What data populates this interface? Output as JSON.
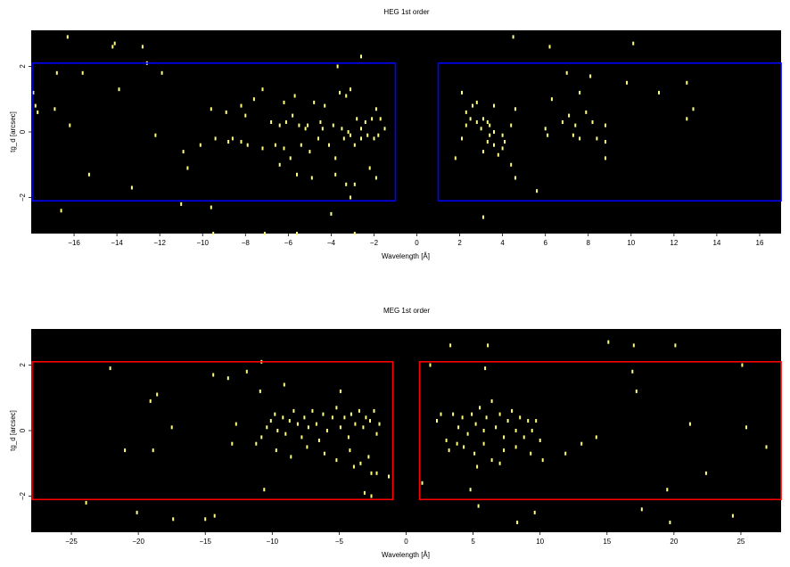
{
  "chart_data": [
    {
      "type": "heatmap",
      "title": "HEG 1st order",
      "xlabel": "Wavelength [Å]",
      "ylabel": "tg_d [arcsec]",
      "xlim": [
        -18,
        17
      ],
      "ylim": [
        -3.1,
        3.1
      ],
      "xticks": [
        -16,
        -14,
        -12,
        -10,
        -8,
        -6,
        -4,
        -2,
        0,
        2,
        4,
        6,
        8,
        10,
        12,
        14,
        16
      ],
      "xtick_labels": [
        "−16",
        "−14",
        "−12",
        "−10",
        "−8",
        "−6",
        "−4",
        "−2",
        "0",
        "2",
        "4",
        "6",
        "8",
        "10",
        "12",
        "14",
        "16"
      ],
      "yticks": [
        -2,
        0,
        2
      ],
      "ytick_labels": [
        "−2",
        "0",
        "2"
      ],
      "background_color": "#000000",
      "event_color": "#ffff80",
      "region_color": "#0000ff",
      "regions": [
        {
          "x0": -18,
          "x1": -1,
          "y0": -2.1,
          "y1": 2.1
        },
        {
          "x0": 1,
          "x1": 17,
          "y0": -2.1,
          "y1": 2.1
        }
      ],
      "events": [
        [
          -16.3,
          2.9
        ],
        [
          -14.1,
          2.7
        ],
        [
          -14.2,
          2.6
        ],
        [
          -12.8,
          2.6
        ],
        [
          -12.6,
          2.1
        ],
        [
          -3.7,
          2.0
        ],
        [
          -2.6,
          2.3
        ],
        [
          4.5,
          2.9
        ],
        [
          6.2,
          2.6
        ],
        [
          10.1,
          2.7
        ],
        [
          -17.9,
          1.2
        ],
        [
          -17.8,
          0.8
        ],
        [
          -16.8,
          1.8
        ],
        [
          -15.6,
          1.8
        ],
        [
          -11.9,
          1.8
        ],
        [
          -17.7,
          0.6
        ],
        [
          -16.9,
          0.7
        ],
        [
          -16.2,
          0.2
        ],
        [
          -13.9,
          1.3
        ],
        [
          -9.6,
          0.7
        ],
        [
          -8.9,
          0.6
        ],
        [
          -8.2,
          0.8
        ],
        [
          -8.0,
          0.5
        ],
        [
          -7.6,
          1.0
        ],
        [
          -6.8,
          0.3
        ],
        [
          -6.4,
          0.2
        ],
        [
          -6.1,
          0.3
        ],
        [
          -5.8,
          0.5
        ],
        [
          -5.5,
          0.2
        ],
        [
          -5.2,
          0.1
        ],
        [
          -4.8,
          0.9
        ],
        [
          -4.5,
          0.3
        ],
        [
          -4.3,
          0.8
        ],
        [
          -3.9,
          0.2
        ],
        [
          -3.6,
          1.2
        ],
        [
          -3.3,
          1.1
        ],
        [
          -3.1,
          1.3
        ],
        [
          -2.8,
          0.4
        ],
        [
          -2.6,
          0.1
        ],
        [
          -2.4,
          0.3
        ],
        [
          -2.1,
          0.4
        ],
        [
          -1.9,
          0.7
        ],
        [
          -1.7,
          0.4
        ],
        [
          -7.2,
          1.3
        ],
        [
          -5.7,
          1.1
        ],
        [
          -6.2,
          0.9
        ],
        [
          -12.2,
          -0.1
        ],
        [
          -10.9,
          -0.6
        ],
        [
          -10.7,
          -1.1
        ],
        [
          -10.1,
          -0.4
        ],
        [
          -9.4,
          -0.2
        ],
        [
          -8.8,
          -0.3
        ],
        [
          -8.6,
          -0.2
        ],
        [
          -8.2,
          -0.3
        ],
        [
          -7.9,
          -0.4
        ],
        [
          -7.2,
          -0.5
        ],
        [
          -6.6,
          -0.4
        ],
        [
          -6.2,
          -0.5
        ],
        [
          -5.9,
          -0.8
        ],
        [
          -5.4,
          -0.4
        ],
        [
          -5.0,
          -0.6
        ],
        [
          -4.6,
          -0.2
        ],
        [
          -4.1,
          -0.4
        ],
        [
          -3.8,
          -0.8
        ],
        [
          -3.4,
          -0.2
        ],
        [
          -3.1,
          -0.1
        ],
        [
          -2.9,
          -0.4
        ],
        [
          -2.6,
          -0.2
        ],
        [
          -2.3,
          -0.1
        ],
        [
          -2.0,
          -0.2
        ],
        [
          -1.8,
          -0.1
        ],
        [
          -1.5,
          0.1
        ],
        [
          -3.5,
          0.1
        ],
        [
          -3.2,
          0.0
        ],
        [
          -5.1,
          0.2
        ],
        [
          -4.4,
          0.1
        ],
        [
          -6.4,
          -1.0
        ],
        [
          -5.6,
          -1.3
        ],
        [
          -4.9,
          -1.4
        ],
        [
          -3.8,
          -1.3
        ],
        [
          -3.3,
          -1.6
        ],
        [
          -2.9,
          -1.6
        ],
        [
          -2.2,
          -1.1
        ],
        [
          -1.9,
          -1.4
        ],
        [
          -15.3,
          -1.3
        ],
        [
          -13.3,
          -1.7
        ],
        [
          -11.0,
          -2.2
        ],
        [
          -9.6,
          -2.3
        ],
        [
          -3.1,
          -2.0
        ],
        [
          -16.6,
          -2.4
        ],
        [
          -9.5,
          -3.1
        ],
        [
          -7.1,
          -3.1
        ],
        [
          -5.6,
          -3.1
        ],
        [
          -4.0,
          -2.5
        ],
        [
          -2.9,
          -3.1
        ],
        [
          2.1,
          1.2
        ],
        [
          2.3,
          0.6
        ],
        [
          2.5,
          0.4
        ],
        [
          2.6,
          0.8
        ],
        [
          2.8,
          0.9
        ],
        [
          3.1,
          0.4
        ],
        [
          3.3,
          0.3
        ],
        [
          3.6,
          0.8
        ],
        [
          4.4,
          0.2
        ],
        [
          4.6,
          0.7
        ],
        [
          6.3,
          1.0
        ],
        [
          7.0,
          1.8
        ],
        [
          7.6,
          1.2
        ],
        [
          8.1,
          1.7
        ],
        [
          9.8,
          1.5
        ],
        [
          11.3,
          1.2
        ],
        [
          12.6,
          1.5
        ],
        [
          12.9,
          0.7
        ],
        [
          2.3,
          0.2
        ],
        [
          2.8,
          0.3
        ],
        [
          3.0,
          0.1
        ],
        [
          3.4,
          0.2
        ],
        [
          3.6,
          0.0
        ],
        [
          4.0,
          -0.1
        ],
        [
          6.0,
          0.1
        ],
        [
          6.8,
          0.3
        ],
        [
          7.1,
          0.5
        ],
        [
          7.4,
          0.2
        ],
        [
          7.9,
          0.6
        ],
        [
          8.2,
          0.3
        ],
        [
          8.8,
          0.2
        ],
        [
          12.6,
          0.4
        ],
        [
          2.1,
          -0.2
        ],
        [
          3.3,
          -0.3
        ],
        [
          3.6,
          -0.4
        ],
        [
          4.1,
          -0.3
        ],
        [
          6.1,
          -0.1
        ],
        [
          7.3,
          -0.1
        ],
        [
          7.6,
          -0.2
        ],
        [
          8.4,
          -0.2
        ],
        [
          8.8,
          -0.3
        ],
        [
          3.4,
          -0.1
        ],
        [
          1.8,
          -0.8
        ],
        [
          3.1,
          -0.6
        ],
        [
          3.8,
          -0.7
        ],
        [
          4.0,
          -0.5
        ],
        [
          4.4,
          -1.0
        ],
        [
          4.6,
          -1.4
        ],
        [
          5.6,
          -1.8
        ],
        [
          3.1,
          -2.6
        ],
        [
          8.8,
          -0.8
        ]
      ]
    },
    {
      "type": "heatmap",
      "title": "MEG 1st order",
      "xlabel": "Wavelength [Å]",
      "ylabel": "tg_d [arcsec]",
      "xlim": [
        -28,
        28
      ],
      "ylim": [
        -3.1,
        3.1
      ],
      "xticks": [
        -25,
        -20,
        -15,
        -10,
        -5,
        0,
        5,
        10,
        15,
        20,
        25
      ],
      "xtick_labels": [
        "−25",
        "−20",
        "−15",
        "−10",
        "−5",
        "0",
        "5",
        "10",
        "15",
        "20",
        "25"
      ],
      "yticks": [
        -2,
        0,
        2
      ],
      "ytick_labels": [
        "−2",
        "0",
        "2"
      ],
      "background_color": "#000000",
      "event_color": "#ffff80",
      "region_color": "#ff0000",
      "regions": [
        {
          "x0": -28,
          "x1": -1,
          "y0": -2.1,
          "y1": 2.1
        },
        {
          "x0": 1,
          "x1": 28,
          "y0": -2.1,
          "y1": 2.1
        }
      ],
      "events": [
        [
          -22.1,
          1.9
        ],
        [
          -19.1,
          0.9
        ],
        [
          -18.6,
          1.1
        ],
        [
          -14.4,
          1.7
        ],
        [
          -13.3,
          1.6
        ],
        [
          -11.9,
          1.8
        ],
        [
          -10.9,
          1.2
        ],
        [
          -10.8,
          2.1
        ],
        [
          -9.1,
          1.4
        ],
        [
          -4.9,
          1.2
        ],
        [
          1.8,
          2.0
        ],
        [
          3.3,
          2.6
        ],
        [
          6.1,
          2.6
        ],
        [
          5.9,
          1.9
        ],
        [
          15.1,
          2.7
        ],
        [
          17.0,
          2.6
        ],
        [
          20.1,
          2.6
        ],
        [
          25.1,
          2.0
        ],
        [
          16.9,
          1.8
        ],
        [
          17.2,
          1.2
        ],
        [
          -21.0,
          -0.6
        ],
        [
          -17.5,
          0.1
        ],
        [
          -18.9,
          -0.6
        ],
        [
          -13.0,
          -0.4
        ],
        [
          -11.2,
          -0.4
        ],
        [
          -12.7,
          0.2
        ],
        [
          -10.8,
          -0.2
        ],
        [
          -10.4,
          0.1
        ],
        [
          -10.1,
          0.3
        ],
        [
          -9.8,
          0.5
        ],
        [
          -9.6,
          0.0
        ],
        [
          -9.2,
          0.4
        ],
        [
          -9.0,
          -0.1
        ],
        [
          -8.7,
          0.3
        ],
        [
          -8.4,
          0.6
        ],
        [
          -8.1,
          0.2
        ],
        [
          -7.8,
          -0.2
        ],
        [
          -7.6,
          0.4
        ],
        [
          -7.3,
          0.1
        ],
        [
          -7.0,
          0.6
        ],
        [
          -6.7,
          0.2
        ],
        [
          -6.5,
          -0.3
        ],
        [
          -6.2,
          0.5
        ],
        [
          -5.9,
          0.0
        ],
        [
          -5.5,
          0.4
        ],
        [
          -5.2,
          0.7
        ],
        [
          -4.9,
          0.1
        ],
        [
          -4.6,
          0.4
        ],
        [
          -4.3,
          -0.2
        ],
        [
          -4.1,
          0.5
        ],
        [
          -3.8,
          0.2
        ],
        [
          -3.5,
          0.6
        ],
        [
          -3.2,
          0.1
        ],
        [
          -3.0,
          0.4
        ],
        [
          -2.7,
          0.3
        ],
        [
          -2.4,
          0.6
        ],
        [
          -2.2,
          -0.1
        ],
        [
          -2.0,
          0.2
        ],
        [
          -9.7,
          -0.6
        ],
        [
          -8.6,
          -0.8
        ],
        [
          -7.4,
          -0.5
        ],
        [
          -6.1,
          -0.7
        ],
        [
          -5.2,
          -0.9
        ],
        [
          -4.2,
          -0.6
        ],
        [
          -3.4,
          -1.0
        ],
        [
          -2.8,
          -0.8
        ],
        [
          -2.6,
          -1.3
        ],
        [
          -3.9,
          -1.1
        ],
        [
          -10.6,
          -1.8
        ],
        [
          -3.1,
          -1.9
        ],
        [
          -2.6,
          -2.0
        ],
        [
          -2.2,
          -1.3
        ],
        [
          -1.3,
          -1.4
        ],
        [
          -23.9,
          -2.2
        ],
        [
          -20.1,
          -2.5
        ],
        [
          -17.4,
          -2.7
        ],
        [
          -15.0,
          -2.7
        ],
        [
          -14.3,
          -2.6
        ],
        [
          2.3,
          0.3
        ],
        [
          2.6,
          0.5
        ],
        [
          3.0,
          -0.3
        ],
        [
          3.5,
          0.5
        ],
        [
          3.9,
          0.1
        ],
        [
          4.2,
          0.4
        ],
        [
          4.6,
          -0.1
        ],
        [
          4.9,
          0.5
        ],
        [
          5.2,
          0.2
        ],
        [
          5.5,
          0.7
        ],
        [
          5.8,
          0.0
        ],
        [
          6.0,
          0.4
        ],
        [
          6.4,
          0.9
        ],
        [
          6.7,
          0.1
        ],
        [
          7.0,
          0.5
        ],
        [
          7.3,
          -0.2
        ],
        [
          7.6,
          0.3
        ],
        [
          7.9,
          0.6
        ],
        [
          8.2,
          0.0
        ],
        [
          8.5,
          0.4
        ],
        [
          8.8,
          -0.2
        ],
        [
          9.1,
          0.3
        ],
        [
          9.4,
          0.0
        ],
        [
          9.7,
          0.3
        ],
        [
          10.0,
          -0.3
        ],
        [
          3.2,
          -0.6
        ],
        [
          3.8,
          -0.4
        ],
        [
          4.3,
          -0.5
        ],
        [
          5.1,
          -0.7
        ],
        [
          5.8,
          -0.4
        ],
        [
          6.4,
          -0.9
        ],
        [
          7.3,
          -0.6
        ],
        [
          8.2,
          -0.5
        ],
        [
          9.3,
          -0.7
        ],
        [
          10.2,
          -0.9
        ],
        [
          5.3,
          -1.1
        ],
        [
          7.0,
          -1.0
        ],
        [
          11.9,
          -0.7
        ],
        [
          13.1,
          -0.4
        ],
        [
          14.2,
          -0.2
        ],
        [
          26.9,
          -0.5
        ],
        [
          25.4,
          0.1
        ],
        [
          22.4,
          -1.3
        ],
        [
          1.2,
          -1.6
        ],
        [
          4.8,
          -1.8
        ],
        [
          5.4,
          -2.3
        ],
        [
          8.3,
          -2.8
        ],
        [
          9.6,
          -2.5
        ],
        [
          17.6,
          -2.4
        ],
        [
          19.5,
          -1.8
        ],
        [
          19.7,
          -2.8
        ],
        [
          24.4,
          -2.6
        ],
        [
          21.2,
          0.2
        ]
      ]
    }
  ]
}
